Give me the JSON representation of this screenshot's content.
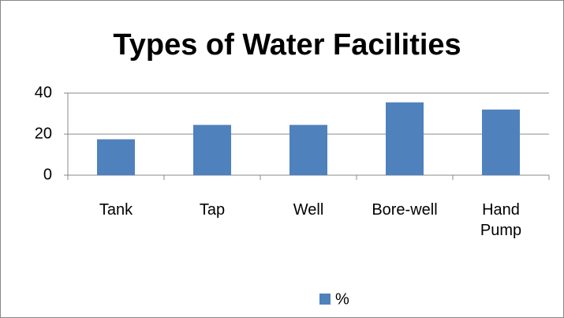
{
  "chart_data": {
    "type": "bar",
    "title": "Types of Water Facilities",
    "categories": [
      "Tank",
      "Tap",
      "Well",
      "Bore-well",
      "Hand Pump"
    ],
    "series": [
      {
        "name": "%",
        "color": "#4f81bd",
        "values": [
          17.5,
          24.5,
          24.5,
          35.5,
          32
        ]
      }
    ],
    "ylim": [
      0,
      40
    ],
    "yticks": [
      0,
      20,
      40
    ],
    "grid": true,
    "legend": "bottom"
  }
}
